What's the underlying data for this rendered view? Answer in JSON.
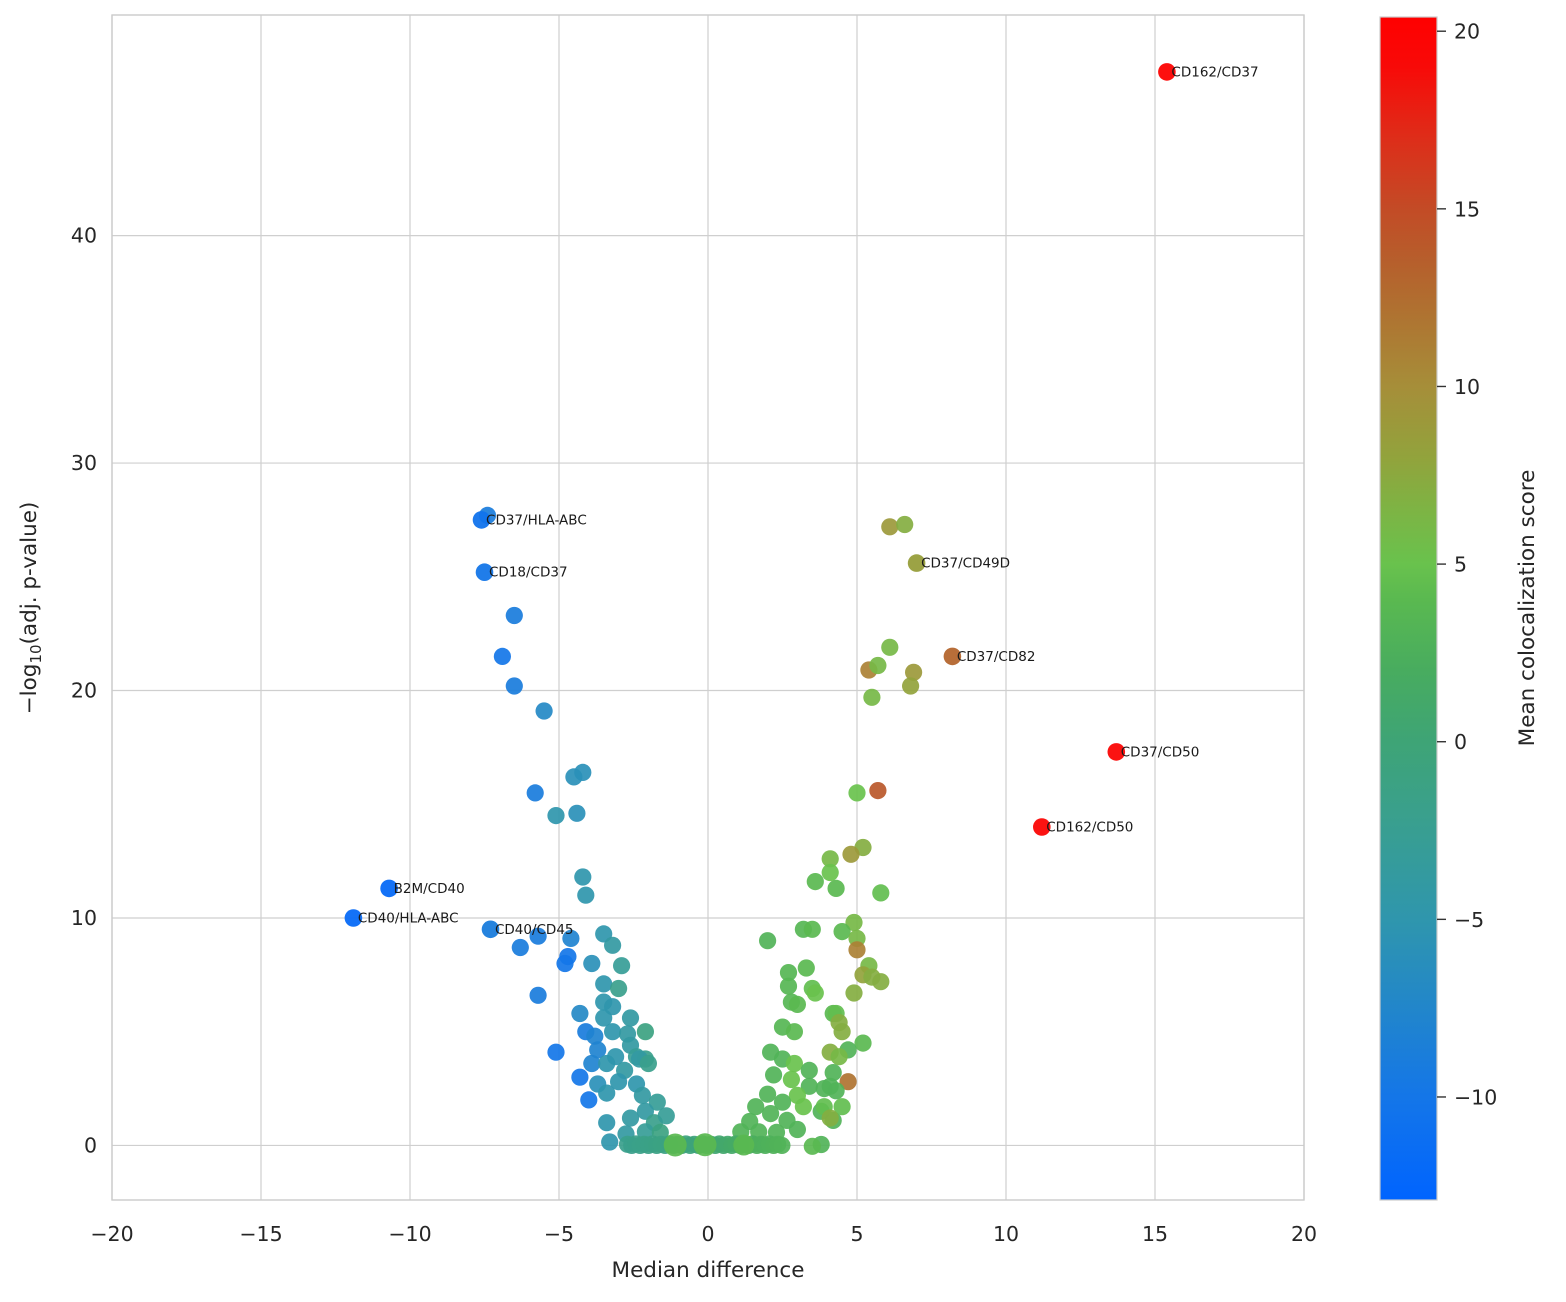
{
  "figure": {
    "xlabel": "Median difference",
    "ylabel_prefix": "−log",
    "ylabel_sub": "10",
    "ylabel_suffix": "(adj. p-value)",
    "colorbar": {
      "label": "Mean colocalization score"
    }
  },
  "chart_data": {
    "type": "scatter",
    "title": "",
    "xlabel": "Median difference",
    "ylabel": "-log10(adj. p-value)",
    "xlim": [
      -20,
      20
    ],
    "ylim": [
      -2.4,
      49.7
    ],
    "grid": true,
    "x_ticks": [
      {
        "v": -20,
        "label": "−20"
      },
      {
        "v": -15,
        "label": "−15"
      },
      {
        "v": -10,
        "label": "−10"
      },
      {
        "v": -5,
        "label": "−5"
      },
      {
        "v": 0,
        "label": "0"
      },
      {
        "v": 5,
        "label": "5"
      },
      {
        "v": 10,
        "label": "10"
      },
      {
        "v": 15,
        "label": "15"
      },
      {
        "v": 20,
        "label": "20"
      }
    ],
    "y_ticks": [
      {
        "v": 0,
        "label": "0"
      },
      {
        "v": 10,
        "label": "10"
      },
      {
        "v": 20,
        "label": "20"
      },
      {
        "v": 30,
        "label": "30"
      },
      {
        "v": 40,
        "label": "40"
      }
    ],
    "colorbar": {
      "label": "Mean colocalization score",
      "vmin": -12.9,
      "vmax": 20.4,
      "ticks": [
        {
          "v": 20,
          "label": "20"
        },
        {
          "v": 15,
          "label": "15"
        },
        {
          "v": 10,
          "label": "10"
        },
        {
          "v": 5,
          "label": "5"
        },
        {
          "v": 0,
          "label": "0"
        },
        {
          "v": -5,
          "label": "−5"
        },
        {
          "v": -10,
          "label": "−10"
        }
      ]
    },
    "colormap_stops": [
      [
        -13.0,
        "#0064ff"
      ],
      [
        -10.0,
        "#1476e8"
      ],
      [
        -5.0,
        "#2f96ad"
      ],
      [
        -2.0,
        "#3aa08c"
      ],
      [
        0.0,
        "#3ea476"
      ],
      [
        2.0,
        "#48ac5f"
      ],
      [
        4.0,
        "#5ab950"
      ],
      [
        5.0,
        "#69c24d"
      ],
      [
        6.5,
        "#7db444"
      ],
      [
        8.0,
        "#92a33c"
      ],
      [
        10.0,
        "#a68e39"
      ],
      [
        12.0,
        "#af7331"
      ],
      [
        13.5,
        "#b65f2c"
      ],
      [
        15.0,
        "#c34b26"
      ],
      [
        17.0,
        "#de2d19"
      ],
      [
        19.0,
        "#f80a08"
      ],
      [
        20.4,
        "#ff0000"
      ]
    ],
    "labeled_points": [
      {
        "label": "CD162/CD37",
        "x": 15.4,
        "y": 47.2,
        "c": 20
      },
      {
        "label": "CD37/HLA-ABC",
        "x": -7.6,
        "y": 27.5,
        "c": -10.5
      },
      {
        "label": "CD18/CD37",
        "x": -7.5,
        "y": 25.2,
        "c": -10
      },
      {
        "label": "CD37/CD49D",
        "x": 7.0,
        "y": 25.6,
        "c": 8.5
      },
      {
        "label": "CD37/CD82",
        "x": 8.2,
        "y": 21.5,
        "c": 13
      },
      {
        "label": "CD37/CD50",
        "x": 13.7,
        "y": 17.3,
        "c": 19.5
      },
      {
        "label": "CD162/CD50",
        "x": 11.2,
        "y": 14.0,
        "c": 19.5
      },
      {
        "label": "B2M/CD40",
        "x": -10.7,
        "y": 11.3,
        "c": -12
      },
      {
        "label": "CD40/HLA-ABC",
        "x": -11.9,
        "y": 10.0,
        "c": -12
      },
      {
        "label": "CD40/CD45",
        "x": -7.3,
        "y": 9.5,
        "c": -9
      }
    ],
    "points": [
      [
        -7.4,
        27.7,
        -9
      ],
      [
        -6.5,
        23.3,
        -9
      ],
      [
        -6.9,
        21.5,
        -10
      ],
      [
        -6.5,
        20.2,
        -9
      ],
      [
        -5.5,
        19.1,
        -7
      ],
      [
        -4.5,
        16.2,
        -6
      ],
      [
        -4.2,
        16.4,
        -6
      ],
      [
        -5.8,
        15.5,
        -9
      ],
      [
        -5.1,
        14.5,
        -5
      ],
      [
        -4.4,
        14.6,
        -6
      ],
      [
        -4.2,
        11.8,
        -5
      ],
      [
        -4.1,
        11.0,
        -5
      ],
      [
        -6.3,
        8.7,
        -9
      ],
      [
        -5.7,
        9.2,
        -9
      ],
      [
        -5.7,
        6.6,
        -9
      ],
      [
        -4.6,
        9.1,
        -8
      ],
      [
        -3.5,
        9.3,
        -5
      ],
      [
        -3.2,
        8.8,
        -4
      ],
      [
        -4.7,
        8.3,
        -10
      ],
      [
        -4.8,
        8.0,
        -10
      ],
      [
        -3.9,
        8.0,
        -6
      ],
      [
        -2.9,
        7.9,
        -3
      ],
      [
        -3.5,
        7.1,
        -5
      ],
      [
        -3.0,
        6.9,
        -2
      ],
      [
        -3.5,
        6.3,
        -5
      ],
      [
        -3.2,
        6.1,
        -5
      ],
      [
        -4.3,
        5.8,
        -7
      ],
      [
        -3.5,
        5.6,
        -5
      ],
      [
        -2.6,
        5.6,
        -4
      ],
      [
        -4.1,
        5.0,
        -9
      ],
      [
        -3.8,
        4.8,
        -8
      ],
      [
        -3.2,
        5.0,
        -5
      ],
      [
        -2.7,
        4.9,
        -4
      ],
      [
        -2.1,
        5.0,
        -1
      ],
      [
        -5.1,
        4.1,
        -10
      ],
      [
        -3.7,
        4.2,
        -8
      ],
      [
        -3.1,
        3.9,
        -5
      ],
      [
        -2.6,
        4.4,
        -4
      ],
      [
        -2.4,
        3.9,
        -3
      ],
      [
        -2.1,
        3.8,
        -2
      ],
      [
        -3.9,
        3.6,
        -8
      ],
      [
        -3.4,
        3.6,
        -5
      ],
      [
        -2.8,
        3.3,
        -4
      ],
      [
        -2.3,
        3.8,
        -4
      ],
      [
        -4.3,
        3.0,
        -10
      ],
      [
        -3.7,
        2.7,
        -6
      ],
      [
        -3.0,
        2.8,
        -5
      ],
      [
        -2.4,
        2.7,
        -5
      ],
      [
        -2.0,
        3.6,
        -2
      ],
      [
        -4.0,
        2.0,
        -10
      ],
      [
        -3.4,
        2.3,
        -5
      ],
      [
        -2.2,
        2.2,
        -4
      ],
      [
        -1.7,
        1.9,
        -3
      ],
      [
        -3.4,
        1.0,
        -5
      ],
      [
        -2.6,
        1.2,
        -4
      ],
      [
        -2.1,
        1.5,
        -4
      ],
      [
        -1.8,
        1.0,
        -2
      ],
      [
        -1.4,
        1.3,
        -3
      ],
      [
        -2.75,
        0.5,
        -4
      ],
      [
        -2.1,
        0.6,
        -3
      ],
      [
        -1.6,
        0.57,
        -1
      ],
      [
        -3.3,
        0.15,
        -5
      ],
      [
        6.1,
        27.2,
        9
      ],
      [
        6.6,
        27.3,
        7
      ],
      [
        6.1,
        21.9,
        6
      ],
      [
        5.4,
        20.9,
        11
      ],
      [
        5.7,
        21.1,
        6
      ],
      [
        6.9,
        20.8,
        9
      ],
      [
        6.8,
        20.2,
        8
      ],
      [
        5.5,
        19.7,
        6
      ],
      [
        5.0,
        15.5,
        5
      ],
      [
        5.7,
        15.6,
        14
      ],
      [
        5.2,
        13.1,
        7
      ],
      [
        4.8,
        12.8,
        9
      ],
      [
        4.1,
        12.6,
        6
      ],
      [
        4.1,
        12.0,
        5
      ],
      [
        3.6,
        11.6,
        4
      ],
      [
        4.3,
        11.3,
        4
      ],
      [
        5.8,
        11.1,
        4.5
      ],
      [
        4.9,
        9.8,
        6
      ],
      [
        3.2,
        9.5,
        3.5
      ],
      [
        3.5,
        9.5,
        4
      ],
      [
        4.5,
        9.4,
        4
      ],
      [
        5.0,
        9.1,
        6
      ],
      [
        5.0,
        8.6,
        11
      ],
      [
        2.0,
        9.0,
        3
      ],
      [
        5.4,
        7.9,
        6
      ],
      [
        2.7,
        7.6,
        3.5
      ],
      [
        3.3,
        7.8,
        4
      ],
      [
        5.2,
        7.5,
        8
      ],
      [
        5.5,
        7.4,
        7
      ],
      [
        5.8,
        7.2,
        7
      ],
      [
        2.7,
        7.0,
        3.5
      ],
      [
        3.5,
        6.9,
        4.5
      ],
      [
        3.6,
        6.7,
        5
      ],
      [
        4.9,
        6.7,
        7
      ],
      [
        2.8,
        6.3,
        3.5
      ],
      [
        3.0,
        6.2,
        4
      ],
      [
        4.2,
        5.8,
        4
      ],
      [
        4.3,
        5.8,
        4.5
      ],
      [
        4.4,
        5.4,
        7
      ],
      [
        2.5,
        5.2,
        3.5
      ],
      [
        2.9,
        5.0,
        4
      ],
      [
        4.5,
        5.0,
        7
      ],
      [
        5.2,
        4.5,
        4
      ],
      [
        4.7,
        4.2,
        3
      ],
      [
        4.1,
        4.1,
        7
      ],
      [
        4.4,
        3.9,
        6
      ],
      [
        2.1,
        4.1,
        3
      ],
      [
        2.5,
        3.8,
        3
      ],
      [
        2.9,
        3.6,
        5
      ],
      [
        2.2,
        3.1,
        3
      ],
      [
        2.8,
        2.9,
        5
      ],
      [
        3.4,
        3.3,
        3
      ],
      [
        3.4,
        2.6,
        3
      ],
      [
        4.2,
        3.2,
        3
      ],
      [
        4.7,
        2.8,
        12
      ],
      [
        4.1,
        2.6,
        3
      ],
      [
        3.9,
        2.5,
        3
      ],
      [
        4.3,
        2.4,
        3
      ],
      [
        3.0,
        2.2,
        5
      ],
      [
        2.5,
        1.9,
        3
      ],
      [
        3.2,
        1.7,
        5
      ],
      [
        3.8,
        1.5,
        3
      ],
      [
        4.2,
        1.1,
        3
      ],
      [
        3.9,
        1.7,
        4.5
      ],
      [
        4.5,
        1.7,
        4.5
      ],
      [
        4.1,
        1.2,
        7
      ],
      [
        2.0,
        2.25,
        3
      ],
      [
        1.6,
        1.7,
        3
      ],
      [
        2.1,
        1.4,
        3
      ],
      [
        2.65,
        1.1,
        3
      ],
      [
        3.0,
        0.7,
        3
      ],
      [
        1.4,
        1.05,
        3
      ],
      [
        1.7,
        0.6,
        3
      ],
      [
        1.1,
        0.6,
        3
      ],
      [
        2.3,
        0.57,
        3
      ],
      [
        3.8,
        0.04,
        3
      ],
      [
        3.5,
        -0.04,
        4
      ],
      [
        -2.7,
        0.05,
        -2
      ],
      [
        -2.56,
        0,
        -1.9
      ],
      [
        -2.42,
        0.06,
        -1.8
      ],
      [
        -2.28,
        0,
        -1.7
      ],
      [
        -2.14,
        0.05,
        -1.6
      ],
      [
        -2.0,
        0,
        -1.5
      ],
      [
        -1.86,
        0.06,
        -1.4
      ],
      [
        -1.72,
        0,
        -1.3
      ],
      [
        -1.58,
        0.05,
        -1.2
      ],
      [
        -1.44,
        0,
        -1.1
      ],
      [
        -1.3,
        0.06,
        -1.0
      ],
      [
        -1.16,
        0,
        -0.9
      ],
      [
        -1.02,
        0.05,
        -0.8
      ],
      [
        -0.88,
        0,
        -0.7
      ],
      [
        -0.74,
        0.06,
        -0.6
      ],
      [
        -0.6,
        0,
        -0.5
      ],
      [
        -0.46,
        0.05,
        -0.4
      ],
      [
        -0.32,
        0,
        -0.3
      ],
      [
        -0.18,
        0.06,
        -0.1
      ],
      [
        -0.04,
        0,
        0
      ],
      [
        0.1,
        0.05,
        0.2
      ],
      [
        0.24,
        0,
        0.4
      ],
      [
        0.38,
        0.06,
        0.6
      ],
      [
        0.52,
        0,
        0.8
      ],
      [
        0.66,
        0.05,
        1.0
      ],
      [
        0.8,
        0,
        1.2
      ],
      [
        0.94,
        0.06,
        1.4
      ],
      [
        1.08,
        0,
        1.6
      ],
      [
        1.22,
        0.05,
        1.8
      ],
      [
        1.36,
        0,
        2.0
      ],
      [
        1.5,
        0.06,
        2.2
      ],
      [
        1.64,
        0,
        2.4
      ],
      [
        1.78,
        0.05,
        2.5
      ],
      [
        1.92,
        0,
        2.6
      ],
      [
        2.06,
        0.06,
        2.7
      ],
      [
        2.2,
        0,
        2.8
      ],
      [
        2.34,
        0.05,
        2.9
      ],
      [
        2.48,
        0,
        3.0
      ],
      [
        -1.1,
        0.02,
        4,
        11.5
      ],
      [
        -0.1,
        0.03,
        4,
        11.5
      ],
      [
        1.2,
        0.02,
        4,
        10.5
      ]
    ]
  }
}
